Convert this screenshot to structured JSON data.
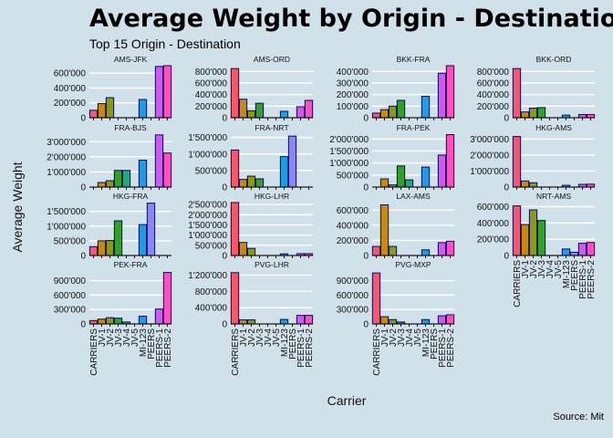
{
  "title": "Average Weight by Origin - Destination",
  "subtitle": "Top 15 Origin - Destination",
  "caption": "Source: Mit",
  "chart_data": {
    "type": "bar",
    "xlabel": "Carrier",
    "ylabel": "Average Weight",
    "categories": [
      "CARRIERS",
      "JV-1",
      "JV-2",
      "JV-3",
      "JV-4",
      "JV-5",
      "MI-123",
      "PEERS",
      "PEERS-1",
      "PEERS-2"
    ],
    "colors": [
      "#f8566a",
      "#c58a12",
      "#8a9a12",
      "#33a02c",
      "#1aae6e",
      "#11b3a8",
      "#1a9fe6",
      "#8a86f5",
      "#d158f1",
      "#ff4fc1"
    ],
    "grid": true,
    "legend": "none",
    "facets": [
      {
        "name": "AMS-JFK",
        "ylim": [
          0,
          700000
        ],
        "ticks": [
          0,
          200000,
          400000,
          600000
        ],
        "tick_labels": [
          "0",
          "200'000",
          "400'000",
          "600'000"
        ],
        "values": [
          100000,
          190000,
          270000,
          0,
          0,
          0,
          245000,
          0,
          690000,
          700000
        ]
      },
      {
        "name": "AMS-ORD",
        "ylim": [
          0,
          900000
        ],
        "ticks": [
          0,
          200000,
          400000,
          600000,
          800000
        ],
        "tick_labels": [
          "0",
          "200'000",
          "400'000",
          "600'000",
          "800'000"
        ],
        "values": [
          850000,
          320000,
          120000,
          250000,
          0,
          0,
          110000,
          0,
          190000,
          300000
        ]
      },
      {
        "name": "BKK-FRA",
        "ylim": [
          0,
          450000
        ],
        "ticks": [
          0,
          100000,
          200000,
          300000,
          400000
        ],
        "tick_labels": [
          "0",
          "100'000",
          "200'000",
          "300'000",
          "400'000"
        ],
        "values": [
          40000,
          70000,
          100000,
          150000,
          0,
          0,
          185000,
          0,
          385000,
          450000
        ]
      },
      {
        "name": "BKK-ORD",
        "ylim": [
          0,
          900000
        ],
        "ticks": [
          0,
          200000,
          400000,
          600000,
          800000
        ],
        "tick_labels": [
          "0",
          "200'000",
          "400'000",
          "600'000",
          "800'000"
        ],
        "values": [
          850000,
          100000,
          165000,
          175000,
          0,
          0,
          45000,
          0,
          55000,
          55000
        ]
      },
      {
        "name": "FRA-BJS",
        "ylim": [
          0,
          3500000
        ],
        "ticks": [
          0,
          1000000,
          2000000,
          3000000
        ],
        "tick_labels": [
          "0",
          "1'000'000",
          "2'000'000",
          "3'000'000"
        ],
        "values": [
          0,
          300000,
          420000,
          1100000,
          1100000,
          0,
          1780000,
          0,
          3450000,
          2250000
        ]
      },
      {
        "name": "FRA-NRT",
        "ylim": [
          0,
          1600000
        ],
        "ticks": [
          0,
          500000,
          1000000,
          1500000
        ],
        "tick_labels": [
          "0",
          "500'000",
          "1'000'000",
          "1'500'000"
        ],
        "values": [
          1120000,
          230000,
          330000,
          250000,
          0,
          0,
          920000,
          1540000,
          0,
          0
        ]
      },
      {
        "name": "FRA-PEK",
        "ylim": [
          0,
          2200000
        ],
        "ticks": [
          0,
          500000,
          1000000,
          1500000,
          2000000
        ],
        "tick_labels": [
          "0",
          "500'000",
          "1'000'000",
          "1'500'000",
          "2'000'000"
        ],
        "values": [
          0,
          340000,
          90000,
          880000,
          300000,
          0,
          830000,
          0,
          1330000,
          2180000
        ]
      },
      {
        "name": "HKG-AMS",
        "ylim": [
          0,
          3300000
        ],
        "ticks": [
          0,
          1000000,
          2000000,
          3000000
        ],
        "tick_labels": [
          "0",
          "1'000'000",
          "2'000'000",
          "3'000'000"
        ],
        "values": [
          3150000,
          380000,
          270000,
          0,
          0,
          0,
          110000,
          0,
          170000,
          180000
        ]
      },
      {
        "name": "HKG-FRA",
        "ylim": [
          0,
          1800000
        ],
        "ticks": [
          0,
          500000,
          1000000,
          1500000
        ],
        "tick_labels": [
          "0",
          "500'000",
          "1'000'000",
          "1'500'000"
        ],
        "values": [
          300000,
          500000,
          510000,
          1180000,
          0,
          0,
          1050000,
          1780000,
          0,
          0
        ]
      },
      {
        "name": "HKG-LHR",
        "ylim": [
          0,
          2600000
        ],
        "ticks": [
          0,
          500000,
          1000000,
          1500000,
          2000000,
          2500000
        ],
        "tick_labels": [
          "0",
          "500'000",
          "1'000'000",
          "1'500'000",
          "2'000'000",
          "2'500'000"
        ],
        "values": [
          2600000,
          640000,
          350000,
          0,
          0,
          0,
          80000,
          0,
          90000,
          90000
        ]
      },
      {
        "name": "LAX-AMS",
        "ylim": [
          0,
          700000
        ],
        "ticks": [
          0,
          200000,
          400000,
          600000
        ],
        "tick_labels": [
          "0",
          "200'000",
          "400'000",
          "600'000"
        ],
        "values": [
          120000,
          670000,
          120000,
          0,
          0,
          0,
          75000,
          0,
          170000,
          190000
        ]
      },
      {
        "name": "NRT-AMS",
        "ylim": [
          0,
          650000
        ],
        "ticks": [
          0,
          200000,
          400000,
          600000
        ],
        "tick_labels": [
          "0",
          "200'000",
          "400'000",
          "600'000"
        ],
        "values": [
          610000,
          380000,
          560000,
          430000,
          0,
          0,
          80000,
          40000,
          150000,
          160000
        ]
      },
      {
        "name": "PEK-FRA",
        "ylim": [
          0,
          1100000
        ],
        "ticks": [
          0,
          300000,
          600000,
          900000
        ],
        "tick_labels": [
          "0",
          "300'000",
          "600'000",
          "900'000"
        ],
        "values": [
          70000,
          100000,
          130000,
          120000,
          40000,
          0,
          160000,
          0,
          310000,
          1070000
        ]
      },
      {
        "name": "PVG-LHR",
        "ylim": [
          0,
          1300000
        ],
        "ticks": [
          0,
          400000,
          800000,
          1200000
        ],
        "tick_labels": [
          "0",
          "400'000",
          "800'000",
          "1'200'000"
        ],
        "values": [
          1260000,
          100000,
          100000,
          0,
          0,
          0,
          110000,
          0,
          210000,
          210000
        ]
      },
      {
        "name": "PVG-MXP",
        "ylim": [
          0,
          1100000
        ],
        "ticks": [
          0,
          300000,
          600000,
          900000
        ],
        "tick_labels": [
          "0",
          "300'000",
          "600'000",
          "900'000"
        ],
        "values": [
          1060000,
          150000,
          90000,
          40000,
          0,
          0,
          90000,
          0,
          170000,
          190000
        ]
      }
    ]
  }
}
